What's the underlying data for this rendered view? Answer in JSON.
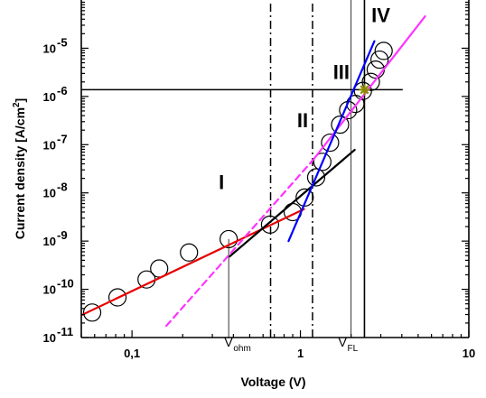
{
  "chart_data": {
    "type": "scatter",
    "x_scale": "log",
    "y_scale": "log",
    "xlim": [
      0.05,
      10
    ],
    "ylim": [
      1e-11,
      0.0001
    ],
    "xlabel": "Voltage (V)",
    "ylabel": "Current density [A/cm",
    "ylabel_sup": "2",
    "ylabel_end": "]",
    "x_ticks": [
      {
        "value": 0.1,
        "label": "0,1"
      },
      {
        "value": 1,
        "label": "1"
      },
      {
        "value": 10,
        "label": "10"
      }
    ],
    "y_ticks": [
      {
        "value": 1e-11,
        "base": "10",
        "exp": "-11"
      },
      {
        "value": 1e-10,
        "base": "10",
        "exp": "-10"
      },
      {
        "value": 1e-09,
        "base": "10",
        "exp": "-9"
      },
      {
        "value": 1e-08,
        "base": "10",
        "exp": "-8"
      },
      {
        "value": 1e-07,
        "base": "10",
        "exp": "-7"
      },
      {
        "value": 1e-06,
        "base": "10",
        "exp": "-6"
      },
      {
        "value": 1e-05,
        "base": "10",
        "exp": "-5"
      }
    ],
    "points": [
      {
        "x": 0.058,
        "y": 3.3e-11
      },
      {
        "x": 0.082,
        "y": 6.8e-11
      },
      {
        "x": 0.122,
        "y": 1.6e-10
      },
      {
        "x": 0.145,
        "y": 2.7e-10
      },
      {
        "x": 0.218,
        "y": 5.8e-10
      },
      {
        "x": 0.375,
        "y": 1.1e-09
      },
      {
        "x": 0.66,
        "y": 2.2e-09
      },
      {
        "x": 0.9,
        "y": 4e-09
      },
      {
        "x": 1.06,
        "y": 8e-09
      },
      {
        "x": 1.24,
        "y": 2.1e-08
      },
      {
        "x": 1.35,
        "y": 4.4e-08
      },
      {
        "x": 1.5,
        "y": 1.1e-07
      },
      {
        "x": 1.72,
        "y": 2.6e-07
      },
      {
        "x": 1.92,
        "y": 5.2e-07
      },
      {
        "x": 2.12,
        "y": 7e-07
      },
      {
        "x": 2.35,
        "y": 1.3e-06
      },
      {
        "x": 2.62,
        "y": 2e-06
      },
      {
        "x": 2.8,
        "y": 3.6e-06
      },
      {
        "x": 2.95,
        "y": 5.8e-06
      },
      {
        "x": 3.12,
        "y": 8.8e-06
      }
    ],
    "fit_lines": [
      {
        "color": "#e60000",
        "style": "solid",
        "from": [
          0.05,
          2.9e-11
        ],
        "to": [
          1.05,
          4.6e-09
        ]
      },
      {
        "color": "#000000",
        "style": "solid",
        "from": [
          0.38,
          4.8e-10
        ],
        "to": [
          2.1,
          7.8e-08
        ]
      },
      {
        "color": "#ff33ff",
        "style": "dashed",
        "from": [
          0.16,
          1.75e-11
        ],
        "to": [
          1.2,
          5e-08
        ]
      },
      {
        "color": "#ff33ff",
        "style": "solid",
        "from": [
          1.2,
          5e-08
        ],
        "to": [
          5.5,
          4.6e-05
        ]
      },
      {
        "color": "#0000ff",
        "style": "solid",
        "from": [
          0.85,
          1e-09
        ],
        "to": [
          2.75,
          1.4e-05
        ]
      }
    ],
    "vertical_lines": [
      {
        "x": 0.375,
        "style": "thin",
        "y_to": 1.1e-09
      },
      {
        "x": 0.665,
        "style": "dashdot"
      },
      {
        "x": 1.18,
        "style": "dashdot"
      },
      {
        "x": 2.0,
        "style": "thin"
      },
      {
        "x": 2.4,
        "style": "solid"
      }
    ],
    "horizontal_lines": [
      {
        "y": 1.38e-06,
        "x_to": 4.05
      }
    ],
    "marker_star": {
      "x": 2.4,
      "y": 1.38e-06,
      "color": "#8b8b00"
    },
    "region_labels": [
      {
        "text": "I",
        "x": 0.34,
        "y": 1.2e-08
      },
      {
        "text": "II",
        "x": 1.03,
        "y": 2.3e-07
      },
      {
        "text": "III",
        "x": 1.75,
        "y": 2.3e-06
      },
      {
        "text": "IV",
        "x": 3.0,
        "y": 3.5e-05
      }
    ],
    "annotations": [
      {
        "main": "V",
        "sub": "ohm",
        "x": 0.4,
        "y": 6.5e-12
      },
      {
        "main": "V",
        "sub": "FL",
        "x": 1.9,
        "y": 6.5e-12
      }
    ]
  }
}
